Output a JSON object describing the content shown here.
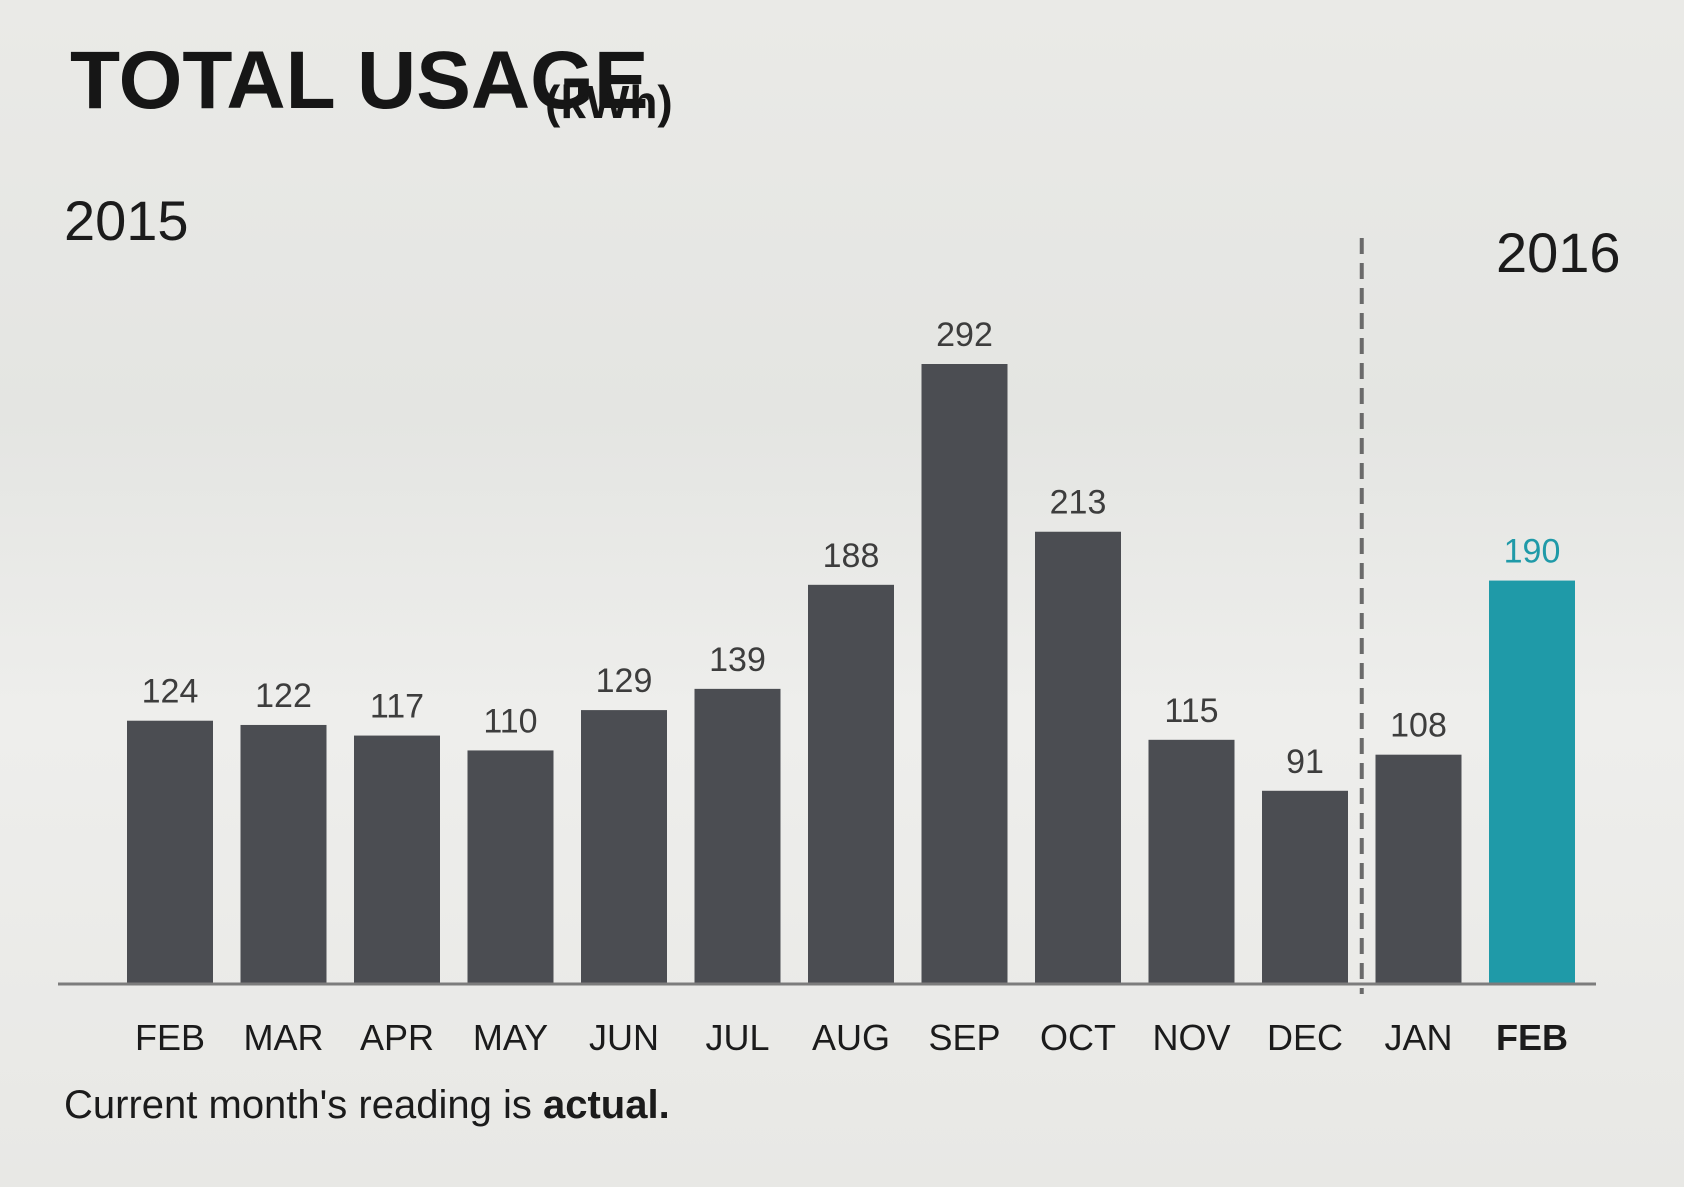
{
  "chart_data": {
    "type": "bar",
    "title": "TOTAL USAGE",
    "unit_label": "(kWh)",
    "year_labels": {
      "start": "2015",
      "end": "2016"
    },
    "categories": [
      "FEB",
      "MAR",
      "APR",
      "MAY",
      "JUN",
      "JUL",
      "AUG",
      "SEP",
      "OCT",
      "NOV",
      "DEC",
      "JAN",
      "FEB"
    ],
    "values": [
      124,
      122,
      117,
      110,
      129,
      139,
      188,
      292,
      213,
      115,
      91,
      108,
      190
    ],
    "highlight_index": 12,
    "divider_after_index": 10,
    "xlabel": "",
    "ylabel": "",
    "ylim": [
      0,
      292
    ],
    "grid": false,
    "colors": {
      "bar": "#4b4d52",
      "highlight": "#1f9aa8",
      "baseline": "#7c7c7c",
      "divider": "#6a6a6a"
    }
  },
  "footnote": {
    "prefix": "Current month's reading is ",
    "emphasis": "actual."
  }
}
